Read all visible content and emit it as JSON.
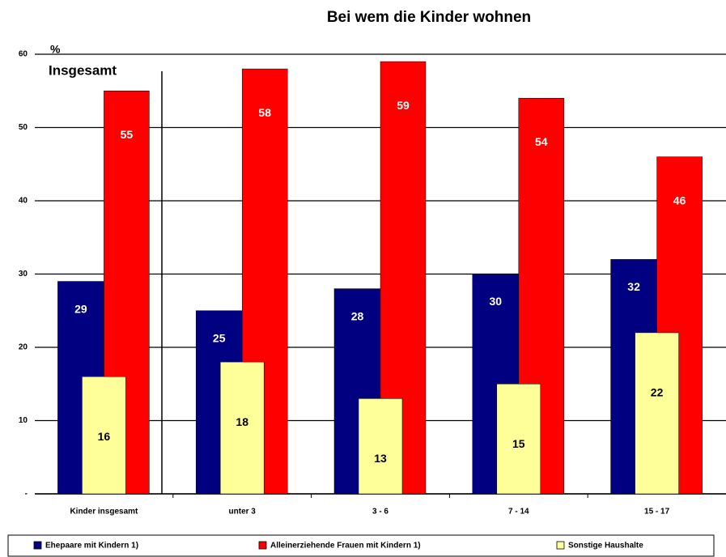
{
  "chart_data": {
    "type": "bar",
    "title": "Bei wem die Kinder wohnen",
    "unit_label": "%",
    "annotation": "Insgesamt",
    "categories": [
      "Kinder insgesamt",
      "unter 3",
      "3 - 6",
      "7 - 14",
      "15 - 17"
    ],
    "series": [
      {
        "name": "Ehepaare mit Kindern 1)",
        "color": "#000080",
        "values": [
          29,
          25,
          28,
          30,
          32
        ]
      },
      {
        "name": "Alleinerziehende Frauen mit Kindern 1)",
        "color": "#ff0000",
        "values": [
          55,
          58,
          59,
          54,
          46
        ]
      },
      {
        "name": "Sonstige Haushalte",
        "color": "#ffff99",
        "values": [
          16,
          18,
          13,
          15,
          22
        ]
      }
    ],
    "ylim": [
      0,
      60
    ],
    "yticks": [
      {
        "value": 0,
        "label": "-"
      },
      10,
      20,
      30,
      40,
      50,
      60
    ],
    "grid": true
  }
}
